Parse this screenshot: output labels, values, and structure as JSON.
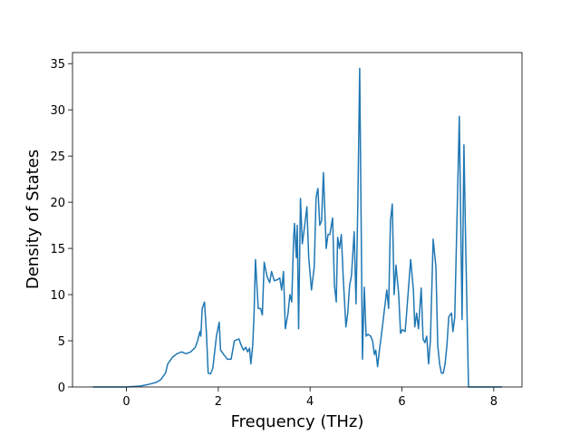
{
  "chart_data": {
    "type": "line",
    "x_label": "Frequency (THz)",
    "y_label": "Density of States",
    "xlim": [
      -1.175,
      8.615
    ],
    "ylim": [
      0,
      36.2
    ],
    "xticks": [
      0,
      2,
      4,
      6,
      8
    ],
    "yticks": [
      0,
      5,
      10,
      15,
      20,
      25,
      30,
      35
    ],
    "grid": false,
    "series": [
      {
        "color": "#1f77b4",
        "x": [
          -0.73,
          0.0,
          0.3,
          0.5,
          0.65,
          0.75,
          0.85,
          0.9,
          1.0,
          1.1,
          1.2,
          1.3,
          1.4,
          1.5,
          1.55,
          1.6,
          1.62,
          1.65,
          1.7,
          1.74,
          1.78,
          1.83,
          1.88,
          1.96,
          2.02,
          2.05,
          2.12,
          2.2,
          2.28,
          2.35,
          2.45,
          2.5,
          2.55,
          2.6,
          2.64,
          2.68,
          2.71,
          2.75,
          2.78,
          2.81,
          2.87,
          2.92,
          2.96,
          3.0,
          3.06,
          3.12,
          3.16,
          3.22,
          3.28,
          3.34,
          3.38,
          3.42,
          3.46,
          3.52,
          3.56,
          3.6,
          3.64,
          3.66,
          3.7,
          3.72,
          3.75,
          3.79,
          3.83,
          3.87,
          3.93,
          3.97,
          4.03,
          4.09,
          4.13,
          4.17,
          4.21,
          4.25,
          4.29,
          4.35,
          4.39,
          4.43,
          4.49,
          4.53,
          4.57,
          4.6,
          4.64,
          4.68,
          4.72,
          4.78,
          4.82,
          4.86,
          4.9,
          4.96,
          5.0,
          5.04,
          5.08,
          5.14,
          5.18,
          5.22,
          5.26,
          5.32,
          5.36,
          5.4,
          5.43,
          5.47,
          5.51,
          5.55,
          5.61,
          5.67,
          5.71,
          5.75,
          5.79,
          5.83,
          5.87,
          5.93,
          5.97,
          6.01,
          6.07,
          6.11,
          6.19,
          6.25,
          6.28,
          6.32,
          6.36,
          6.42,
          6.46,
          6.5,
          6.54,
          6.58,
          6.62,
          6.68,
          6.74,
          6.78,
          6.82,
          6.86,
          6.9,
          6.94,
          6.98,
          7.02,
          7.08,
          7.11,
          7.15,
          7.25,
          7.31,
          7.35,
          7.39,
          7.45,
          8.18
        ],
        "values": [
          0,
          0,
          0.1,
          0.3,
          0.5,
          0.8,
          1.5,
          2.5,
          3.2,
          3.6,
          3.8,
          3.6,
          3.8,
          4.3,
          5.0,
          6.0,
          5.5,
          8.5,
          9.2,
          6.0,
          1.5,
          1.4,
          2.0,
          5.5,
          7.0,
          4.0,
          3.5,
          3.0,
          3.0,
          5.0,
          5.2,
          4.5,
          4.0,
          4.3,
          3.8,
          4.2,
          2.5,
          4.5,
          8.0,
          13.8,
          8.5,
          8.5,
          7.8,
          13.5,
          12.0,
          11.3,
          12.5,
          11.5,
          11.6,
          11.8,
          10.5,
          12.5,
          6.3,
          8.0,
          10.0,
          9.2,
          16.0,
          17.7,
          14.0,
          17.5,
          6.3,
          20.4,
          15.5,
          17.0,
          19.5,
          14.0,
          10.5,
          13.0,
          20.5,
          21.5,
          17.5,
          18.0,
          23.2,
          15.0,
          16.5,
          16.5,
          18.3,
          11.0,
          9.2,
          16.2,
          15.0,
          16.5,
          12.0,
          6.5,
          8.0,
          11.0,
          12.0,
          16.8,
          9.0,
          20.0,
          34.5,
          3.0,
          10.8,
          5.5,
          5.7,
          5.5,
          5.0,
          3.5,
          4.0,
          2.2,
          4.0,
          5.5,
          8.0,
          10.5,
          8.5,
          18.0,
          19.8,
          10.0,
          13.2,
          10.0,
          5.8,
          6.2,
          6.0,
          8.5,
          13.8,
          10.5,
          6.5,
          8.0,
          6.3,
          10.7,
          5.2,
          4.8,
          5.5,
          2.5,
          5.0,
          16.0,
          13.0,
          4.5,
          2.5,
          1.5,
          1.5,
          2.5,
          4.5,
          7.6,
          8.0,
          6.0,
          7.5,
          29.3,
          7.3,
          26.2,
          15.0,
          0,
          0
        ]
      }
    ]
  }
}
